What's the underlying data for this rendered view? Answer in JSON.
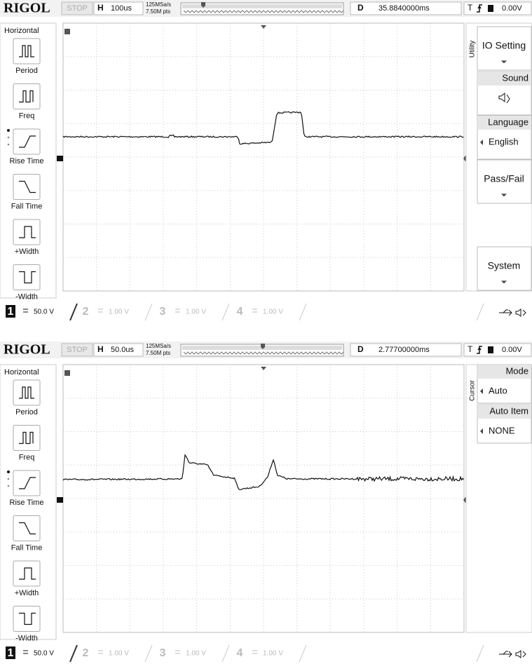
{
  "screens": [
    {
      "header": {
        "brand": "RIGOL",
        "status": "STOP",
        "h_label": "H",
        "timebase": "100us",
        "sample_rate": "125MSa/s",
        "memory": "7.50M pts",
        "d_label": "D",
        "delay": "35.8840000ms",
        "trigger_label": "T",
        "trigger_level": "0.00V"
      },
      "left_menu": {
        "title": "Horizontal",
        "items": [
          "Period",
          "Freq",
          "Rise Time",
          "Fall Time",
          "+Width",
          "-Width"
        ]
      },
      "right_menu": {
        "tab": "Utility",
        "items": [
          {
            "label": "IO Setting"
          },
          {
            "label": "Sound"
          },
          {
            "label": "Language",
            "value": "English"
          },
          {
            "label": "Pass/Fail"
          },
          {
            "label": "System"
          }
        ]
      },
      "channels": [
        {
          "number": "1",
          "scale": "50.0 V"
        },
        {
          "number": "2",
          "scale": "1.00 V"
        },
        {
          "number": "3",
          "scale": "1.00 V"
        },
        {
          "number": "4",
          "scale": "1.00 V"
        }
      ]
    },
    {
      "header": {
        "brand": "RIGOL",
        "status": "STOP",
        "h_label": "H",
        "timebase": "50.0us",
        "sample_rate": "125MSa/s",
        "memory": "7.50M pts",
        "d_label": "D",
        "delay": "2.77700000ms",
        "trigger_label": "T",
        "trigger_level": "0.00V"
      },
      "left_menu": {
        "title": "Horizontal",
        "items": [
          "Period",
          "Freq",
          "Rise Time",
          "Fall Time",
          "+Width",
          "-Width"
        ]
      },
      "right_menu": {
        "tab": "Cursor",
        "items": [
          {
            "label": "Mode",
            "value": "Auto"
          },
          {
            "label": "Auto Item",
            "value": "NONE"
          }
        ]
      },
      "channels": [
        {
          "number": "1",
          "scale": "50.0 V"
        },
        {
          "number": "2",
          "scale": "1.00 V"
        },
        {
          "number": "3",
          "scale": "1.00 V"
        },
        {
          "number": "4",
          "scale": "1.00 V"
        }
      ]
    }
  ]
}
